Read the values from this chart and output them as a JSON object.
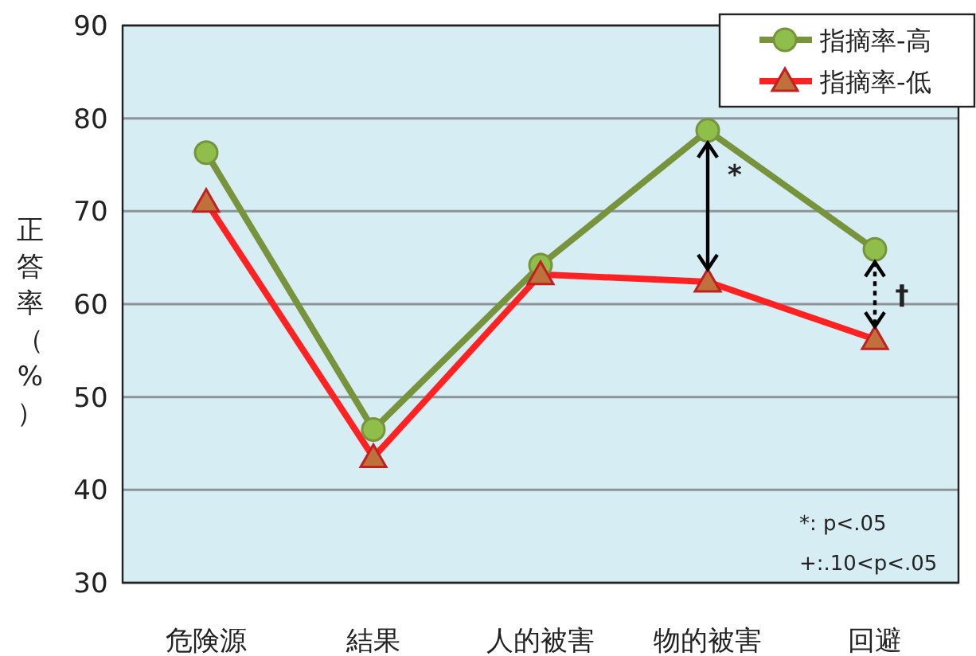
{
  "chart_data": {
    "type": "line",
    "ylabel": "正答率（%）",
    "categories": [
      "危険源",
      "結果",
      "人的被害",
      "物的被害",
      "回避"
    ],
    "series": [
      {
        "name": "指摘率-高",
        "color": "#77933c",
        "marker": "circle",
        "values": [
          76.3,
          46.5,
          64.2,
          78.7,
          65.9
        ]
      },
      {
        "name": "指摘率-低",
        "color": "#ff2222",
        "marker": "triangle",
        "values": [
          71.0,
          43.5,
          63.2,
          62.4,
          56.2
        ]
      }
    ],
    "ylim": [
      30,
      90
    ],
    "yticks": [
      30,
      40,
      50,
      60,
      70,
      80,
      90
    ],
    "grid": "y",
    "legend": "top right",
    "annotations": [
      {
        "text": "*",
        "x": "物的被害",
        "y": 78.7
      },
      {
        "text": "†",
        "x": "回避",
        "y": 65.9
      },
      "*: p<.05",
      "+:.10<p<.05"
    ]
  }
}
